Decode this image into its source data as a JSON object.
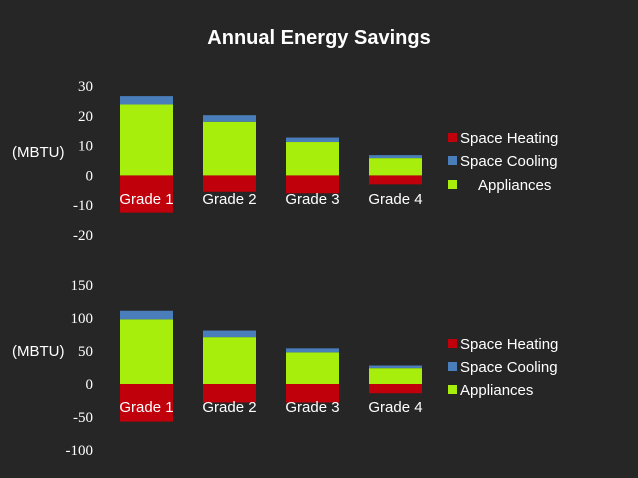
{
  "page_title": "Annual Energy Savings",
  "colors": {
    "background": "#262626",
    "space_heating": "#c0000a",
    "space_cooling": "#4a7ebb",
    "appliances": "#a8ee0c",
    "text": "#ffffff"
  },
  "chart_data": [
    {
      "type": "bar",
      "stacked": true,
      "title": "Annual Energy Savings",
      "ylabel": "(MBTU)",
      "xlabel": "",
      "ylim": [
        -20,
        30
      ],
      "yticks": [
        30,
        20,
        10,
        0,
        -10,
        -20
      ],
      "categories": [
        "Grade 1",
        "Grade 2",
        "Grade 3",
        "Grade 4"
      ],
      "series": [
        {
          "name": "Space Heating",
          "values": [
            -12.5,
            -5.5,
            -6,
            -3
          ]
        },
        {
          "name": "Space Cooling",
          "values": [
            2.8,
            2.2,
            1.5,
            1
          ]
        },
        {
          "name": "Appliances",
          "values": [
            23.8,
            18,
            11.2,
            5.8
          ]
        }
      ],
      "legend_labels": [
        "Space Heating",
        "Space Cooling",
        "Appliances"
      ],
      "legend": "right"
    },
    {
      "type": "bar",
      "stacked": true,
      "title": "",
      "ylabel": "(MBTU)",
      "xlabel": "",
      "ylim": [
        -100,
        150
      ],
      "yticks": [
        150,
        100,
        50,
        0,
        -50,
        -100
      ],
      "categories": [
        "Grade 1",
        "Grade 2",
        "Grade 3",
        "Grade 4"
      ],
      "series": [
        {
          "name": "Space Heating",
          "values": [
            -57,
            -28,
            -28,
            -14
          ]
        },
        {
          "name": "Space Cooling",
          "values": [
            13,
            10,
            6,
            4
          ]
        },
        {
          "name": "Appliances",
          "values": [
            98,
            71,
            48,
            24
          ]
        }
      ],
      "legend_labels": [
        "Space Heating",
        "Space Cooling",
        "Appliances"
      ],
      "legend": "right"
    }
  ]
}
